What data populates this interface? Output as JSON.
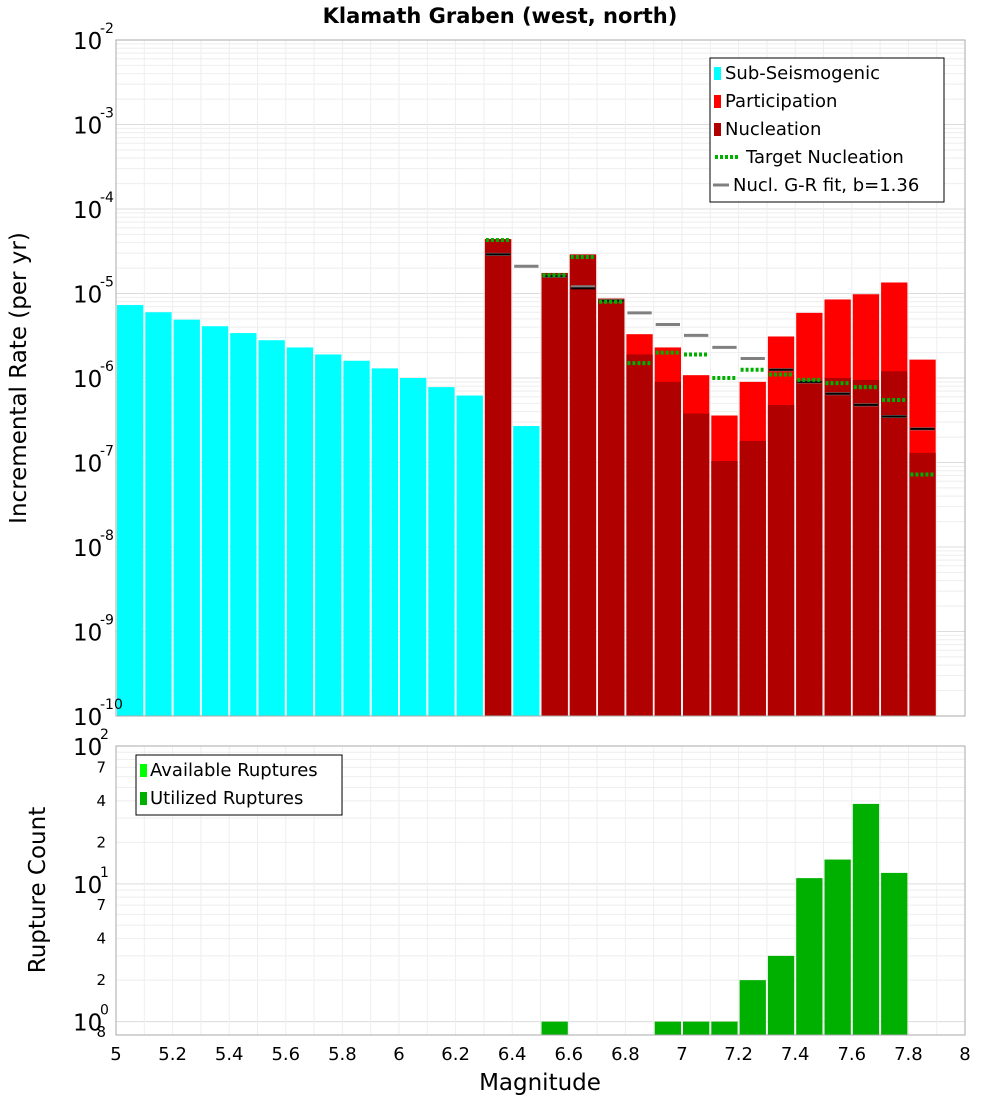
{
  "chart_data": [
    {
      "type": "bar",
      "title": "Klamath Graben (west, north)",
      "xlabel": "Magnitude",
      "ylabel": "Incremental Rate (per yr)",
      "yscale": "log",
      "xlim": [
        5,
        8
      ],
      "ylim": [
        1e-10,
        0.01
      ],
      "x_ticks": [
        "5",
        "5.2",
        "5.4",
        "5.6",
        "5.8",
        "6",
        "6.2",
        "6.4",
        "6.6",
        "6.8",
        "7",
        "7.2",
        "7.4",
        "7.6",
        "7.8",
        "8"
      ],
      "y_ticks": [
        {
          "base": "10",
          "exp": "-10",
          "value": 1e-10
        },
        {
          "base": "10",
          "exp": "-9",
          "value": 1e-09
        },
        {
          "base": "10",
          "exp": "-8",
          "value": 1e-08
        },
        {
          "base": "10",
          "exp": "-7",
          "value": 1e-07
        },
        {
          "base": "10",
          "exp": "-6",
          "value": 1e-06
        },
        {
          "base": "10",
          "exp": "-5",
          "value": 1e-05
        },
        {
          "base": "10",
          "exp": "-4",
          "value": 0.0001
        },
        {
          "base": "10",
          "exp": "-3",
          "value": 0.001
        },
        {
          "base": "10",
          "exp": "-2",
          "value": 0.01
        }
      ],
      "bin_width": 0.1,
      "legend_position": "top-right",
      "colors": {
        "sub_seismogenic": "#00ffff",
        "participation": "#ff0000",
        "nucleation": "#b00000",
        "target": "#00b000",
        "gr_fit": "#808080",
        "black_mark": "#000000"
      },
      "legend": [
        {
          "key": "sub_seismogenic",
          "label": "Sub-Seismogenic",
          "style": "box"
        },
        {
          "key": "participation",
          "label": "Participation",
          "style": "box"
        },
        {
          "key": "nucleation",
          "label": "Nucleation",
          "style": "box"
        },
        {
          "key": "target",
          "label": "Target Nucleation",
          "style": "dotted"
        },
        {
          "key": "gr_fit",
          "label": "Nucl. G-R fit, b=1.36",
          "style": "line"
        }
      ],
      "sub_seismogenic": {
        "x": [
          5.05,
          5.15,
          5.25,
          5.35,
          5.45,
          5.55,
          5.65,
          5.75,
          5.85,
          5.95,
          6.05,
          6.15,
          6.25,
          6.45
        ],
        "values": [
          7.3e-06,
          6e-06,
          4.9e-06,
          4.1e-06,
          3.4e-06,
          2.8e-06,
          2.3e-06,
          1.9e-06,
          1.6e-06,
          1.3e-06,
          1e-06,
          7.8e-07,
          6.2e-07,
          2.7e-07
        ]
      },
      "participation": {
        "x": [
          6.35,
          6.55,
          6.65,
          6.75,
          6.85,
          6.95,
          7.05,
          7.15,
          7.25,
          7.35,
          7.45,
          7.55,
          7.65,
          7.75,
          7.85
        ],
        "values": [
          4.4e-05,
          1.75e-05,
          2.9e-05,
          8.7e-06,
          3.3e-06,
          2.3e-06,
          1.08e-06,
          3.6e-07,
          9e-07,
          3.1e-06,
          5.9e-06,
          8.5e-06,
          9.8e-06,
          1.35e-05,
          1.65e-06
        ]
      },
      "nucleation": {
        "x": [
          6.35,
          6.55,
          6.65,
          6.75,
          6.85,
          6.95,
          7.05,
          7.15,
          7.25,
          7.35,
          7.45,
          7.55,
          7.65,
          7.75,
          7.85
        ],
        "values": [
          4.4e-05,
          1.75e-05,
          2.9e-05,
          8.7e-06,
          1.9e-06,
          9e-07,
          3.8e-07,
          1.04e-07,
          1.8e-07,
          4.8e-07,
          9.5e-07,
          1e-06,
          9.5e-07,
          1.2e-06,
          1.3e-07
        ]
      },
      "target_nucleation": {
        "x": [
          6.35,
          6.55,
          6.65,
          6.75,
          6.85,
          6.95,
          7.05,
          7.15,
          7.25,
          7.35,
          7.45,
          7.55,
          7.65,
          7.75,
          7.85
        ],
        "values": [
          4.3e-05,
          1.65e-05,
          2.7e-05,
          8e-06,
          1.5e-06,
          2e-06,
          1.9e-06,
          1e-06,
          1.25e-06,
          1.1e-06,
          9.5e-07,
          8.7e-07,
          7.8e-07,
          5.5e-07,
          7.2e-08
        ]
      },
      "gr_fit": {
        "x": [
          6.35,
          6.45,
          6.55,
          6.65,
          6.75,
          6.85,
          6.95,
          7.05,
          7.15,
          7.25,
          7.35,
          7.45,
          7.55,
          7.65,
          7.75,
          7.85
        ],
        "values": [
          2.9e-05,
          2.1e-05,
          1.6e-05,
          1.2e-05,
          8.2e-06,
          5.9e-06,
          4.3e-06,
          3.2e-06,
          2.3e-06,
          1.7e-06,
          1.25e-06,
          9e-07,
          6.5e-07,
          4.8e-07,
          3.5e-07,
          2.5e-07
        ]
      },
      "nucleation_marks": {
        "x": [
          6.35,
          6.55,
          6.65,
          6.75,
          7.35,
          7.45,
          7.55,
          7.65,
          7.75,
          7.85
        ],
        "values": [
          2.9e-05,
          1.6e-05,
          1.15e-05,
          8.2e-06,
          1.25e-06,
          9e-07,
          6.5e-07,
          4.8e-07,
          3.5e-07,
          2.5e-07
        ]
      }
    },
    {
      "type": "bar",
      "title": "",
      "xlabel": "Magnitude",
      "ylabel": "Rupture Count",
      "yscale": "log",
      "xlim": [
        5,
        8
      ],
      "ylim": [
        0.8,
        100
      ],
      "x_ticks": [
        "5",
        "5.2",
        "5.4",
        "5.6",
        "5.8",
        "6",
        "6.2",
        "6.4",
        "6.6",
        "6.8",
        "7",
        "7.2",
        "7.4",
        "7.6",
        "7.8",
        "8"
      ],
      "y_major": [
        {
          "base": "10",
          "exp": "0",
          "value": 1
        },
        {
          "base": "10",
          "exp": "1",
          "value": 10
        },
        {
          "base": "10",
          "exp": "2",
          "value": 100
        }
      ],
      "y_minor": [
        {
          "label": "8",
          "value": 0.8
        },
        {
          "label": "2",
          "value": 2
        },
        {
          "label": "4",
          "value": 4
        },
        {
          "label": "7",
          "value": 7
        },
        {
          "label": "2",
          "value": 20
        },
        {
          "label": "4",
          "value": 40
        },
        {
          "label": "7",
          "value": 70
        }
      ],
      "bin_width": 0.1,
      "legend_position": "top-left",
      "colors": {
        "available": "#00ff00",
        "utilized": "#00b000"
      },
      "legend": [
        {
          "key": "available",
          "label": "Available Ruptures"
        },
        {
          "key": "utilized",
          "label": "Utilized Ruptures"
        }
      ],
      "utilized_ruptures": {
        "x": [
          6.55,
          6.95,
          7.05,
          7.15,
          7.25,
          7.35,
          7.45,
          7.55,
          7.65,
          7.75
        ],
        "values": [
          1,
          1,
          1,
          1,
          2,
          3,
          11,
          15,
          38,
          12
        ]
      }
    }
  ]
}
